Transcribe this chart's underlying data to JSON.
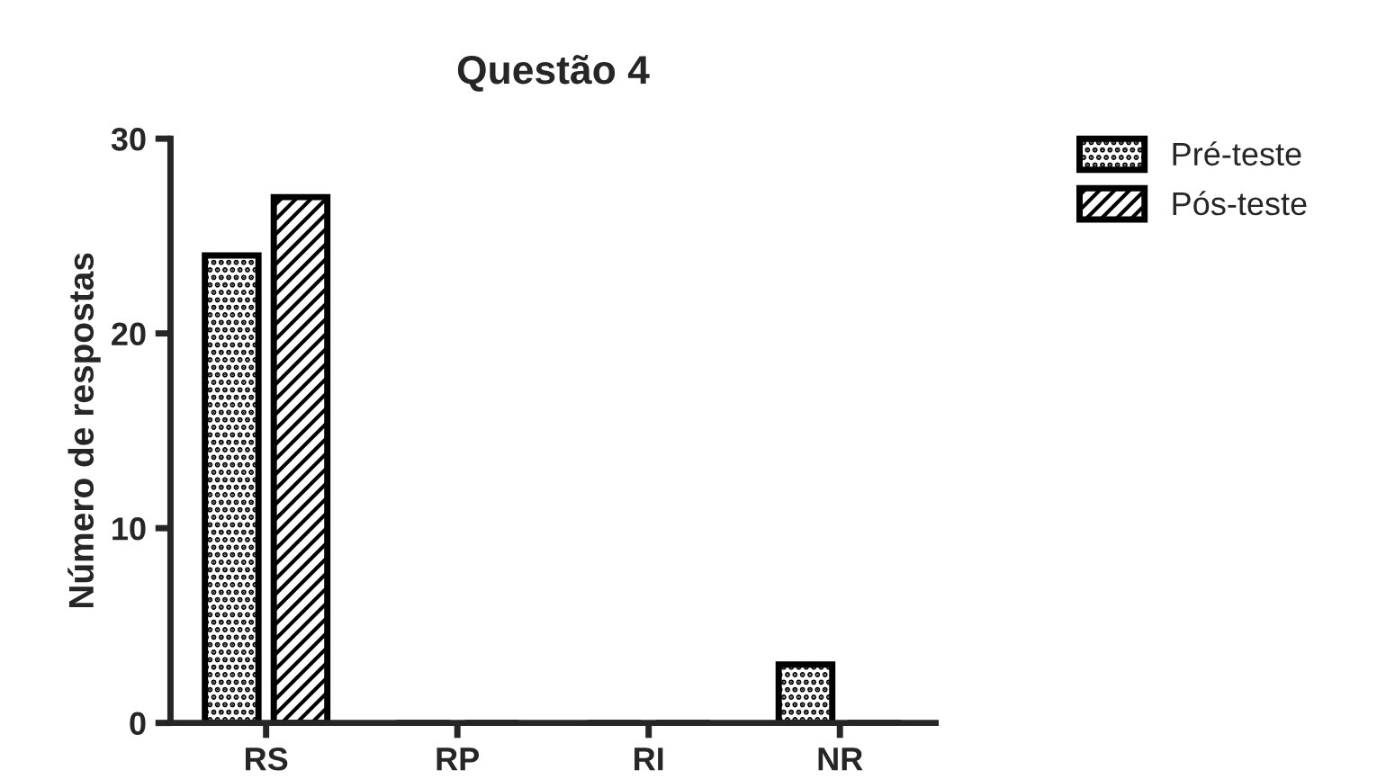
{
  "chart_data": {
    "type": "bar",
    "title": "Questão 4",
    "ylabel": "Número de respostas",
    "categories": [
      "RS",
      "RP",
      "RI",
      "NR"
    ],
    "series": [
      {
        "name": "Pré-teste",
        "color": "#000000",
        "values": [
          24,
          0,
          0,
          3
        ]
      },
      {
        "name": "Pós-teste",
        "color": "#000000",
        "values": [
          27,
          0,
          0,
          0
        ]
      }
    ],
    "ylim": [
      0,
      30
    ],
    "yticks": [
      0,
      10,
      20,
      30
    ],
    "grid": false,
    "legend": "top right"
  }
}
